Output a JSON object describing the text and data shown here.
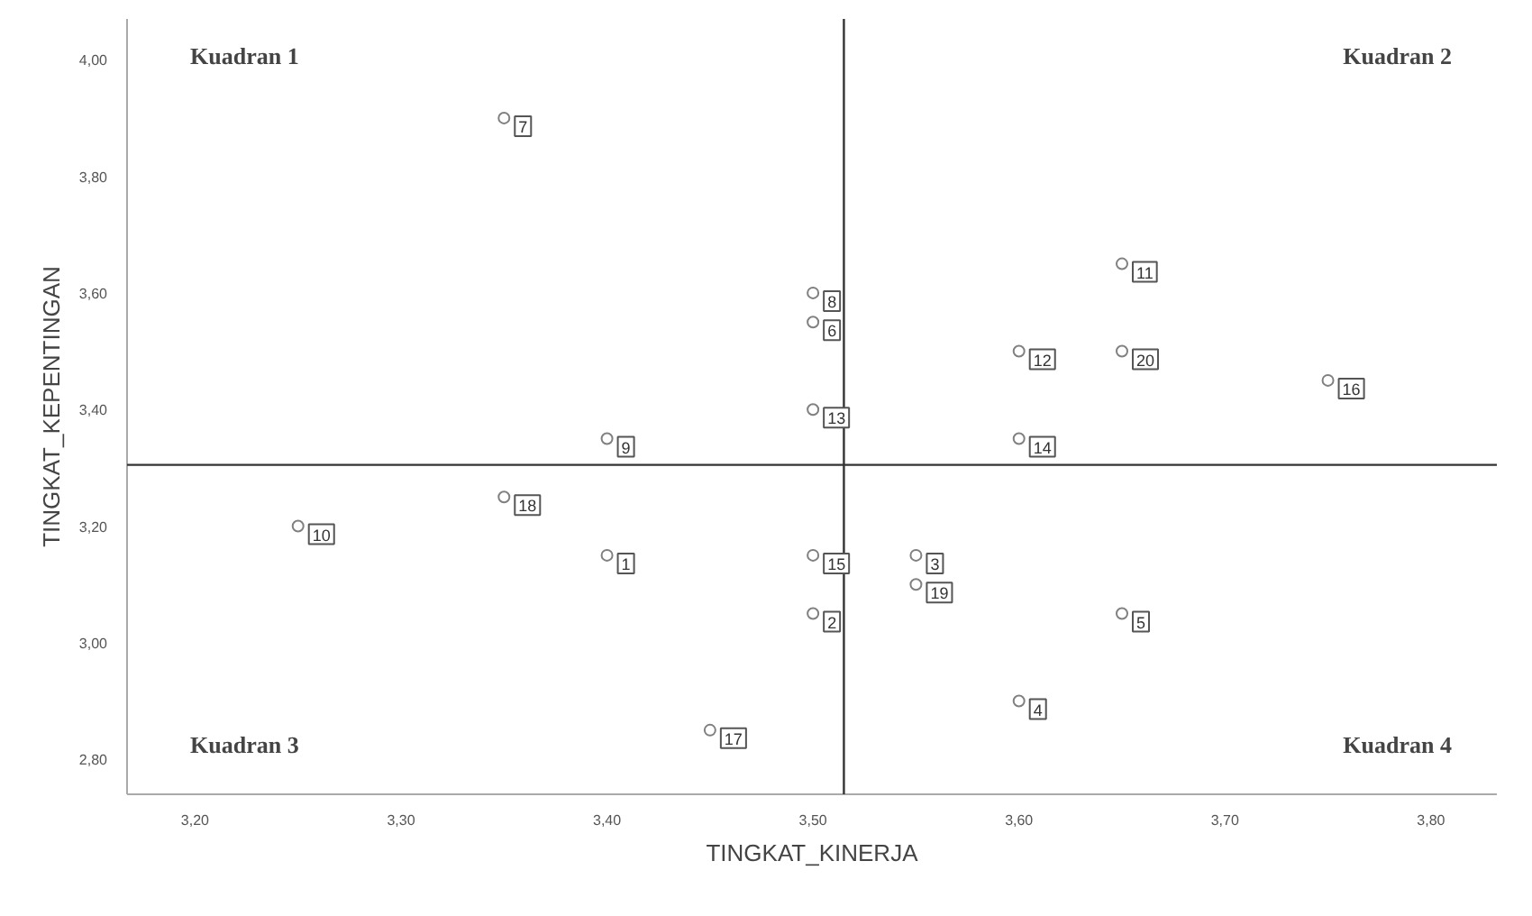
{
  "chart_data": {
    "type": "scatter",
    "xlabel": "TINGKAT_KINERJA",
    "ylabel": "TINGKAT_KEPENTINGAN",
    "x": [
      3.4,
      3.5,
      3.55,
      3.6,
      3.65,
      3.5,
      3.35,
      3.5,
      3.4,
      3.25,
      3.65,
      3.6,
      3.5,
      3.6,
      3.5,
      3.75,
      3.45,
      3.35,
      3.55,
      3.65
    ],
    "values": [
      3.15,
      3.05,
      3.15,
      2.9,
      3.05,
      3.55,
      3.9,
      3.6,
      3.35,
      3.2,
      3.65,
      3.5,
      3.4,
      3.35,
      3.15,
      3.45,
      2.85,
      3.25,
      3.1,
      3.5
    ],
    "color": "#808080",
    "marker": "circle",
    "grid": false,
    "xlim": [
      3.167,
      3.832
    ],
    "ylim": [
      2.74,
      4.07
    ],
    "xticks": [
      {
        "value": 3.2,
        "label": "3,20"
      },
      {
        "value": 3.3,
        "label": "3,30"
      },
      {
        "value": 3.4,
        "label": "3,40"
      },
      {
        "value": 3.5,
        "label": "3,50"
      },
      {
        "value": 3.6,
        "label": "3,60"
      },
      {
        "value": 3.7,
        "label": "3,70"
      },
      {
        "value": 3.8,
        "label": "3,80"
      }
    ],
    "yticks": [
      {
        "value": 2.8,
        "label": "2,80"
      },
      {
        "value": 3.0,
        "label": "3,00"
      },
      {
        "value": 3.2,
        "label": "3,20"
      },
      {
        "value": 3.4,
        "label": "3,40"
      },
      {
        "value": 3.6,
        "label": "3,60"
      },
      {
        "value": 3.8,
        "label": "3,80"
      },
      {
        "value": 4.0,
        "label": "4,00"
      }
    ],
    "ref_lines": [
      {
        "axis": "x",
        "value": 3.515,
        "color": "#333333"
      },
      {
        "axis": "y",
        "value": 3.305,
        "color": "#333333"
      }
    ],
    "annotations": [
      "Kuadran 1",
      "Kuadran 2",
      "Kuadran 3",
      "Kuadran 4",
      {
        "text": "1",
        "x": 3.4,
        "y": 3.15
      },
      {
        "text": "2",
        "x": 3.5,
        "y": 3.05
      },
      {
        "text": "3",
        "x": 3.55,
        "y": 3.15
      },
      {
        "text": "4",
        "x": 3.6,
        "y": 2.9
      },
      {
        "text": "5",
        "x": 3.65,
        "y": 3.05
      },
      {
        "text": "6",
        "x": 3.5,
        "y": 3.55
      },
      {
        "text": "7",
        "x": 3.35,
        "y": 3.9
      },
      {
        "text": "8",
        "x": 3.5,
        "y": 3.6
      },
      {
        "text": "9",
        "x": 3.4,
        "y": 3.35
      },
      {
        "text": "10",
        "x": 3.25,
        "y": 3.2
      },
      {
        "text": "11",
        "x": 3.65,
        "y": 3.65
      },
      {
        "text": "12",
        "x": 3.6,
        "y": 3.5
      },
      {
        "text": "13",
        "x": 3.5,
        "y": 3.4
      },
      {
        "text": "14",
        "x": 3.6,
        "y": 3.35
      },
      {
        "text": "15",
        "x": 3.5,
        "y": 3.15
      },
      {
        "text": "16",
        "x": 3.75,
        "y": 3.45
      },
      {
        "text": "17",
        "x": 3.45,
        "y": 2.85
      },
      {
        "text": "18",
        "x": 3.35,
        "y": 3.25
      },
      {
        "text": "19",
        "x": 3.55,
        "y": 3.1
      },
      {
        "text": "20",
        "x": 3.65,
        "y": 3.5
      }
    ]
  }
}
